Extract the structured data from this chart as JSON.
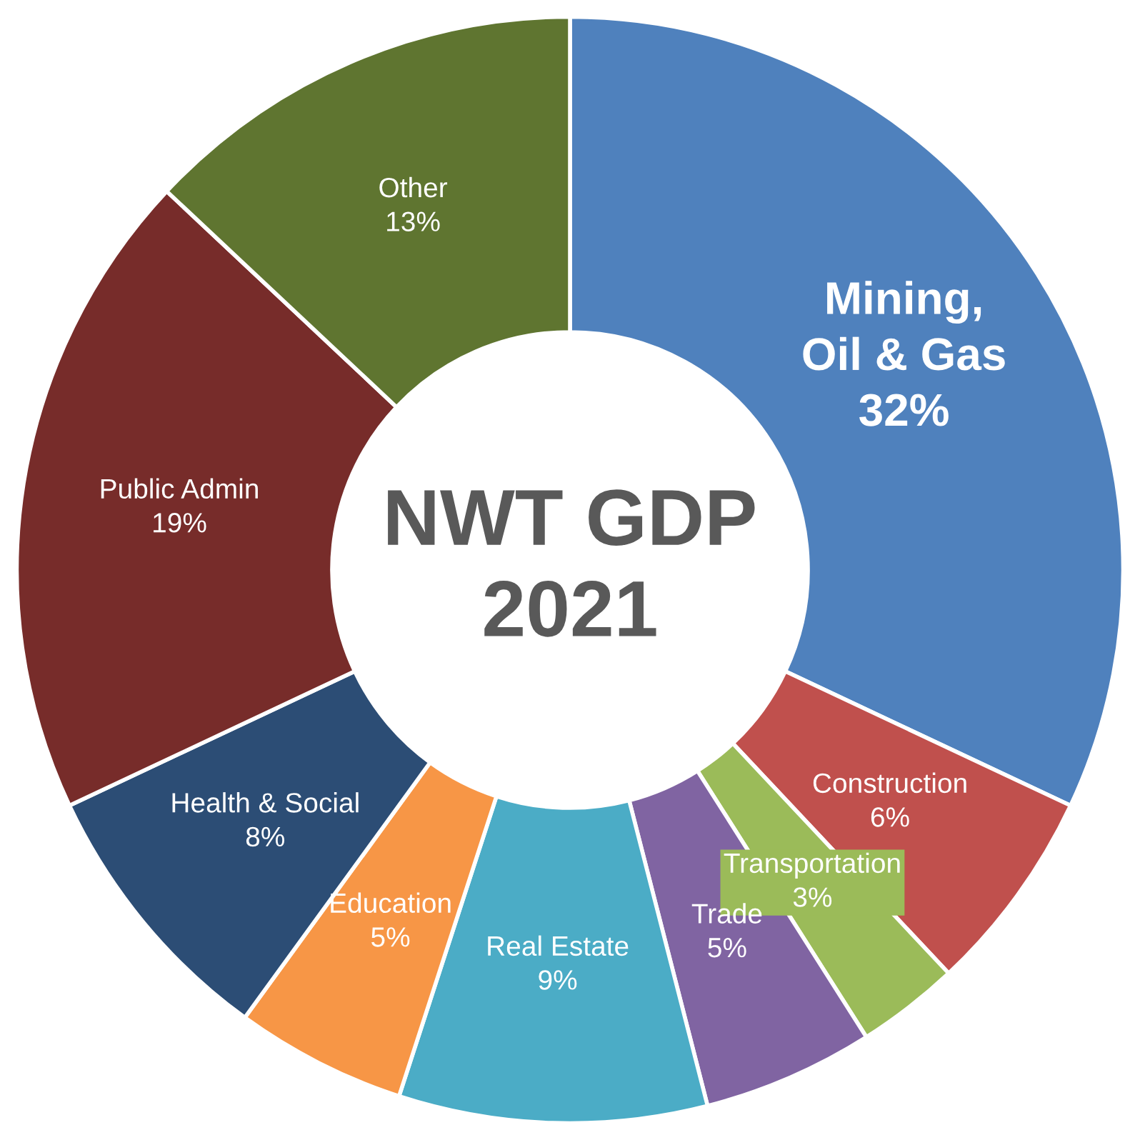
{
  "chart_data": {
    "type": "donut",
    "title": "NWT GDP\n2021",
    "categories": [
      "Mining,\nOil & Gas",
      "Construction",
      "Transportation",
      "Trade",
      "Real Estate",
      "Education",
      "Health & Social",
      "Public Admin",
      "Other"
    ],
    "values": [
      32,
      6,
      3,
      5,
      9,
      5,
      8,
      19,
      13
    ],
    "value_labels": [
      "32%",
      "6%",
      "3%",
      "5%",
      "9%",
      "5%",
      "8%",
      "19%",
      "13%"
    ],
    "colors": [
      "#4f81bd",
      "#c0504d",
      "#9bbb59",
      "#8064a2",
      "#4bacc6",
      "#f79646",
      "#2c4d75",
      "#772c2a",
      "#5f7530"
    ],
    "legend": false
  }
}
